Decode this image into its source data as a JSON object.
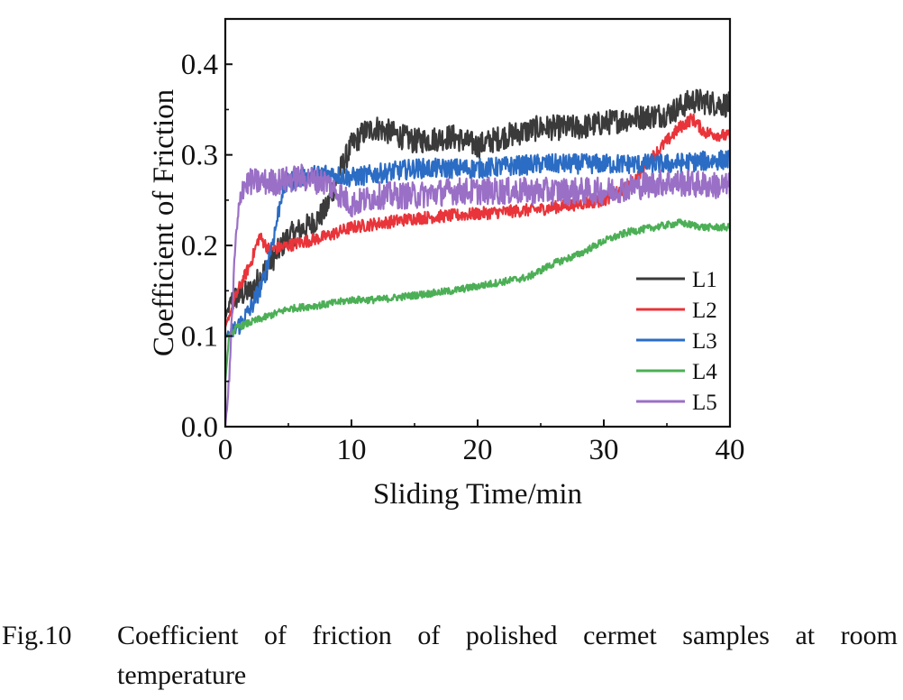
{
  "chart_data": {
    "type": "line",
    "xlabel": "Sliding Time/min",
    "ylabel": "Coefficient of Friction",
    "xlim": [
      0,
      40
    ],
    "ylim": [
      0,
      0.45
    ],
    "xticks": [
      0,
      10,
      20,
      30,
      40
    ],
    "xtick_labels": [
      "0",
      "10",
      "20",
      "30",
      "40"
    ],
    "yticks": [
      0.0,
      0.1,
      0.2,
      0.3,
      0.4
    ],
    "ytick_labels": [
      "0.0",
      "0.1",
      "0.2",
      "0.3",
      "0.4"
    ],
    "grid": false,
    "legend_position": "bottom-right",
    "series": [
      {
        "name": "L1",
        "color": "#3a3a3a",
        "noise": 0.014,
        "x": [
          0,
          0.5,
          2,
          3,
          4,
          5,
          7,
          8,
          9,
          10,
          11,
          12,
          15,
          18,
          20,
          22,
          25,
          28,
          30,
          32,
          35,
          37,
          40
        ],
        "y": [
          0.12,
          0.14,
          0.15,
          0.17,
          0.19,
          0.21,
          0.225,
          0.24,
          0.28,
          0.31,
          0.325,
          0.33,
          0.315,
          0.32,
          0.31,
          0.32,
          0.33,
          0.33,
          0.335,
          0.34,
          0.345,
          0.36,
          0.355
        ]
      },
      {
        "name": "L2",
        "color": "#e8343a",
        "noise": 0.007,
        "x": [
          0,
          1,
          2,
          2.7,
          3.5,
          5,
          8,
          10,
          15,
          20,
          25,
          30,
          32,
          34,
          36,
          37,
          38,
          40
        ],
        "y": [
          0.11,
          0.15,
          0.18,
          0.21,
          0.195,
          0.2,
          0.21,
          0.22,
          0.23,
          0.235,
          0.24,
          0.25,
          0.265,
          0.3,
          0.33,
          0.34,
          0.325,
          0.32
        ]
      },
      {
        "name": "L3",
        "color": "#2b6cc4",
        "noise": 0.011,
        "x": [
          0,
          1,
          2,
          3,
          4,
          4.5,
          5,
          6,
          8,
          10,
          15,
          20,
          25,
          30,
          35,
          40
        ],
        "y": [
          0.1,
          0.11,
          0.13,
          0.16,
          0.22,
          0.26,
          0.27,
          0.275,
          0.28,
          0.275,
          0.285,
          0.285,
          0.29,
          0.29,
          0.29,
          0.295
        ]
      },
      {
        "name": "L4",
        "color": "#4caf56",
        "noise": 0.004,
        "x": [
          0,
          0.3,
          1,
          3,
          5,
          8,
          10,
          12,
          15,
          18,
          20,
          22,
          24,
          26,
          28,
          30,
          32,
          34,
          36,
          38,
          40
        ],
        "y": [
          0.05,
          0.1,
          0.11,
          0.12,
          0.13,
          0.135,
          0.14,
          0.14,
          0.145,
          0.15,
          0.155,
          0.16,
          0.165,
          0.18,
          0.19,
          0.205,
          0.215,
          0.22,
          0.225,
          0.22,
          0.22
        ]
      },
      {
        "name": "L5",
        "color": "#9a6fc6",
        "noise": 0.015,
        "x": [
          0,
          0.3,
          0.8,
          1.3,
          2,
          4,
          6,
          8,
          10,
          12,
          15,
          18,
          20,
          25,
          30,
          35,
          40
        ],
        "y": [
          0.0,
          0.05,
          0.2,
          0.265,
          0.27,
          0.27,
          0.275,
          0.27,
          0.245,
          0.255,
          0.255,
          0.26,
          0.26,
          0.26,
          0.26,
          0.27,
          0.265
        ]
      }
    ]
  },
  "caption": {
    "number": "Fig.10",
    "line1": "Coefficient of friction of polished cermet samples at room",
    "line2": "temperature"
  }
}
